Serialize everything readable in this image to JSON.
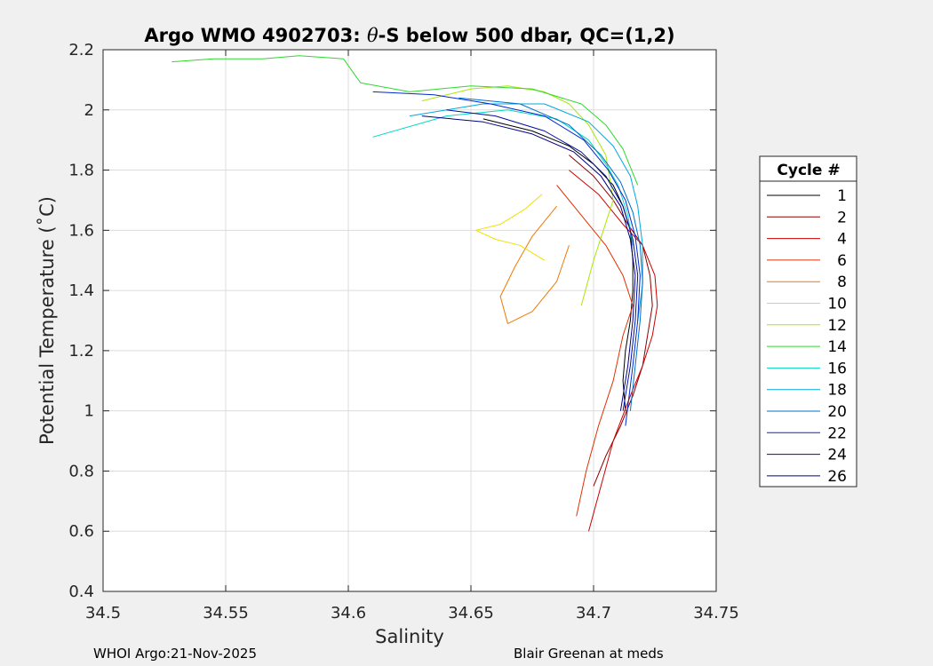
{
  "chart_data": {
    "type": "line",
    "title_parts": [
      "Argo WMO 4902703: ",
      "θ",
      "-S below 500 dbar,  QC=(1,2)"
    ],
    "xlabel": "Salinity",
    "ylabel": "Potential Temperature (˚C)",
    "xlim": [
      34.5,
      34.75
    ],
    "ylim": [
      0.4,
      2.2
    ],
    "xticks": [
      34.5,
      34.55,
      34.6,
      34.65,
      34.7,
      34.75
    ],
    "xtick_labels": [
      "34.5",
      "34.55",
      "34.6",
      "34.65",
      "34.7",
      "34.75"
    ],
    "yticks": [
      0.4,
      0.6,
      0.8,
      1.0,
      1.2,
      1.4,
      1.6,
      1.8,
      2.0,
      2.2
    ],
    "ytick_labels": [
      "0.4",
      "0.6",
      "0.8",
      "1",
      "1.2",
      "1.4",
      "1.6",
      "1.8",
      "2",
      "2.2"
    ],
    "grid": true,
    "legend": {
      "title": "Cycle #",
      "position": "outside-right"
    },
    "series": [
      {
        "name": "1",
        "color": "#000000",
        "x": [
          34.655,
          34.675,
          34.69,
          34.7,
          34.708,
          34.712,
          34.715,
          34.716,
          34.716,
          34.715,
          34.713,
          34.712,
          34.713
        ],
        "y": [
          1.97,
          1.93,
          1.88,
          1.82,
          1.75,
          1.68,
          1.6,
          1.5,
          1.4,
          1.3,
          1.2,
          1.1,
          1.0
        ]
      },
      {
        "name": "2",
        "color": "#8b0000",
        "x": [
          34.69,
          34.7,
          34.708,
          34.714,
          34.72,
          34.723,
          34.724,
          34.722,
          34.72,
          34.716,
          34.711,
          34.705,
          34.7
        ],
        "y": [
          1.85,
          1.78,
          1.7,
          1.62,
          1.55,
          1.45,
          1.35,
          1.25,
          1.15,
          1.05,
          0.95,
          0.85,
          0.75
        ]
      },
      {
        "name": "4",
        "color": "#cc0000",
        "x": [
          34.69,
          34.702,
          34.712,
          34.72,
          34.725,
          34.726,
          34.724,
          34.72,
          34.715,
          34.708,
          34.703,
          34.698
        ],
        "y": [
          1.8,
          1.72,
          1.62,
          1.55,
          1.45,
          1.35,
          1.25,
          1.15,
          1.05,
          0.9,
          0.75,
          0.6
        ]
      },
      {
        "name": "6",
        "color": "#e03000",
        "x": [
          34.685,
          34.695,
          34.705,
          34.712,
          34.716,
          34.712,
          34.708,
          34.702,
          34.697,
          34.693
        ],
        "y": [
          1.75,
          1.65,
          1.55,
          1.45,
          1.35,
          1.25,
          1.1,
          0.95,
          0.8,
          0.65
        ]
      },
      {
        "name": "8",
        "color": "#f07800",
        "x": [
          34.685,
          34.675,
          34.668,
          34.662,
          34.665,
          34.675,
          34.685,
          34.69
        ],
        "y": [
          1.68,
          1.58,
          1.48,
          1.38,
          1.29,
          1.33,
          1.43,
          1.55
        ]
      },
      {
        "name": "10",
        "color": "#f0e000",
        "x": [
          34.679,
          34.672,
          34.662,
          34.652,
          34.66,
          34.67,
          34.68
        ],
        "y": [
          1.72,
          1.67,
          1.62,
          1.6,
          1.57,
          1.55,
          1.5
        ]
      },
      {
        "name": "12",
        "color": "#a8e800",
        "x": [
          34.63,
          34.65,
          34.665,
          34.68,
          34.69,
          34.698,
          34.705,
          34.708,
          34.7,
          34.695
        ],
        "y": [
          2.03,
          2.07,
          2.08,
          2.06,
          2.02,
          1.95,
          1.85,
          1.7,
          1.5,
          1.35
        ]
      },
      {
        "name": "14",
        "color": "#30d830",
        "x": [
          34.528,
          34.545,
          34.565,
          34.58,
          34.598,
          34.605,
          34.625,
          34.65,
          34.675,
          34.695,
          34.705,
          34.712,
          34.718
        ],
        "y": [
          2.16,
          2.17,
          2.17,
          2.18,
          2.17,
          2.09,
          2.06,
          2.08,
          2.07,
          2.02,
          1.95,
          1.87,
          1.75
        ]
      },
      {
        "name": "16",
        "color": "#00d8c0",
        "x": [
          34.61,
          34.64,
          34.665,
          34.685,
          34.698,
          34.705,
          34.71,
          34.714,
          34.716
        ],
        "y": [
          1.91,
          1.98,
          2.0,
          1.97,
          1.9,
          1.82,
          1.75,
          1.65,
          1.55
        ]
      },
      {
        "name": "18",
        "color": "#00a8e0",
        "x": [
          34.625,
          34.655,
          34.68,
          34.698,
          34.708,
          34.715,
          34.718,
          34.72,
          34.72,
          34.718
        ],
        "y": [
          1.98,
          2.02,
          2.02,
          1.96,
          1.88,
          1.78,
          1.68,
          1.55,
          1.42,
          1.3
        ]
      },
      {
        "name": "20",
        "color": "#0070c8",
        "x": [
          34.645,
          34.67,
          34.69,
          34.703,
          34.711,
          34.716,
          34.719,
          34.72,
          34.719,
          34.717,
          34.715
        ],
        "y": [
          2.04,
          2.02,
          1.95,
          1.85,
          1.76,
          1.66,
          1.55,
          1.43,
          1.3,
          1.15,
          1.0
        ]
      },
      {
        "name": "22",
        "color": "#0028d0",
        "x": [
          34.61,
          34.635,
          34.658,
          34.68,
          34.696,
          34.706,
          34.713,
          34.717,
          34.719,
          34.718,
          34.716,
          34.713
        ],
        "y": [
          2.06,
          2.05,
          2.02,
          1.98,
          1.9,
          1.8,
          1.7,
          1.58,
          1.45,
          1.3,
          1.15,
          0.95
        ]
      },
      {
        "name": "24",
        "color": "#0010a0",
        "x": [
          34.64,
          34.66,
          34.68,
          34.695,
          34.705,
          34.712,
          34.716,
          34.718,
          34.717,
          34.715,
          34.712
        ],
        "y": [
          2.0,
          1.98,
          1.93,
          1.86,
          1.78,
          1.68,
          1.57,
          1.45,
          1.3,
          1.15,
          1.0
        ]
      },
      {
        "name": "26",
        "color": "#000080",
        "x": [
          34.63,
          34.655,
          34.675,
          34.692,
          34.703,
          34.711,
          34.715,
          34.717,
          34.716,
          34.714,
          34.711
        ],
        "y": [
          1.98,
          1.96,
          1.92,
          1.86,
          1.78,
          1.68,
          1.57,
          1.45,
          1.3,
          1.15,
          1.0
        ]
      }
    ]
  },
  "footer": {
    "left": "WHOI Argo:21-Nov-2025",
    "right": "Blair Greenan at meds"
  }
}
